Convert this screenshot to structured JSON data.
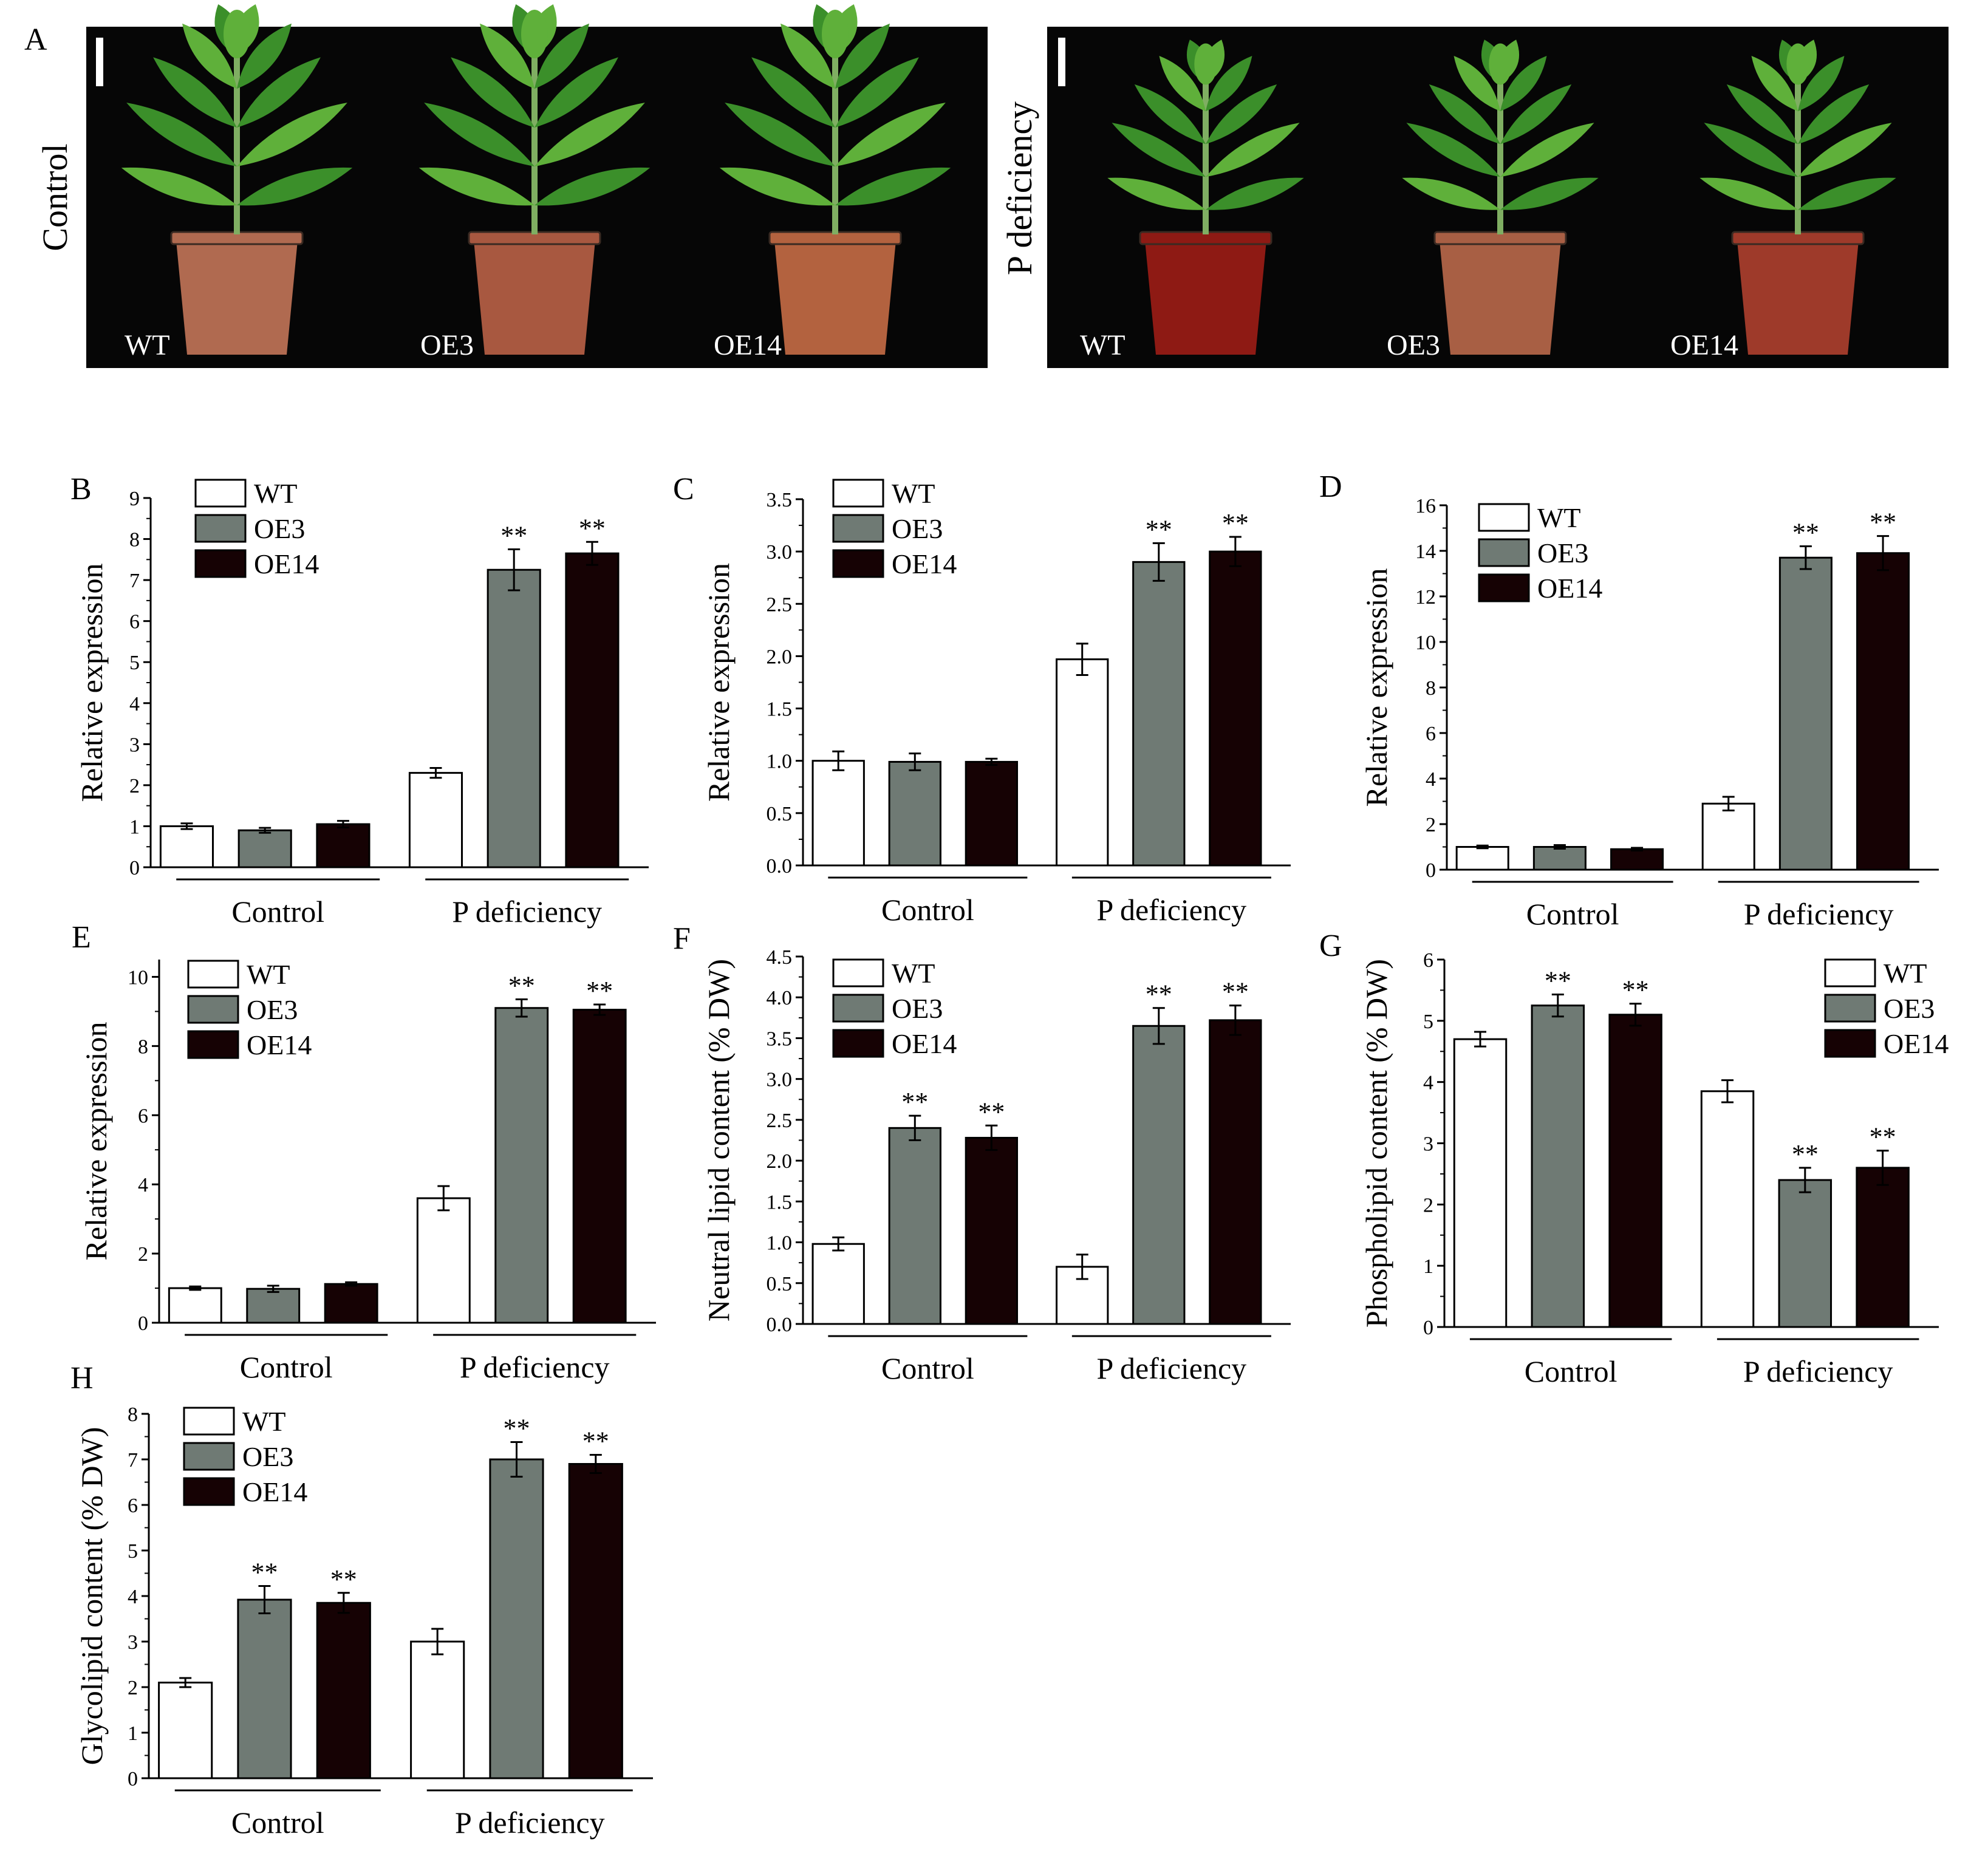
{
  "photos": {
    "panel_letter": "A",
    "panels": [
      {
        "side_label": "Control",
        "plants": [
          "WT",
          "OE3",
          "OE14"
        ],
        "pot_colors": [
          "#b06a50",
          "#a85840",
          "#b3623f"
        ]
      },
      {
        "side_label": "P deficiency",
        "plants": [
          "WT",
          "OE3",
          "OE14"
        ],
        "pot_colors": [
          "#8e1a14",
          "#a85f44",
          "#9e3a2a"
        ]
      }
    ]
  },
  "legend_labels": [
    "WT",
    "OE3",
    "OE14"
  ],
  "colors": {
    "WT": "#ffffff",
    "OE3": "#6f7a74",
    "OE14": "#160204",
    "plant": "#3b8f2a",
    "plant_light": "#5fb03a",
    "photo_bg": "#060606"
  },
  "significance_mark": "**",
  "chart_data": [
    {
      "panel": "B",
      "type": "bar",
      "ylabel": "Relative expression",
      "categories": [
        "Control",
        "P deficiency"
      ],
      "ylim": [
        0,
        9
      ],
      "yticks": [
        "0",
        "1",
        "2",
        "3",
        "4",
        "5",
        "6",
        "7",
        "8",
        "9"
      ],
      "series": [
        {
          "name": "WT",
          "values": [
            1.0,
            2.3
          ],
          "errors": [
            0.07,
            0.12
          ],
          "sig": [
            false,
            false
          ]
        },
        {
          "name": "OE3",
          "values": [
            0.9,
            7.25
          ],
          "errors": [
            0.06,
            0.5
          ],
          "sig": [
            false,
            true
          ]
        },
        {
          "name": "OE14",
          "values": [
            1.05,
            7.65
          ],
          "errors": [
            0.08,
            0.28
          ],
          "sig": [
            false,
            true
          ]
        }
      ]
    },
    {
      "panel": "C",
      "type": "bar",
      "ylabel": "Relative expression",
      "categories": [
        "Control",
        "P deficiency"
      ],
      "ylim": [
        0,
        3.5
      ],
      "yticks": [
        "0.0",
        "0.5",
        "1.0",
        "1.5",
        "2.0",
        "2.5",
        "3.0",
        "3.5"
      ],
      "series": [
        {
          "name": "WT",
          "values": [
            1.0,
            1.97
          ],
          "errors": [
            0.09,
            0.15
          ],
          "sig": [
            false,
            false
          ]
        },
        {
          "name": "OE3",
          "values": [
            0.99,
            2.9
          ],
          "errors": [
            0.08,
            0.18
          ],
          "sig": [
            false,
            true
          ]
        },
        {
          "name": "OE14",
          "values": [
            0.99,
            3.0
          ],
          "errors": [
            0.03,
            0.14
          ],
          "sig": [
            false,
            true
          ]
        }
      ]
    },
    {
      "panel": "D",
      "type": "bar",
      "ylabel": "Relative expression",
      "categories": [
        "Control",
        "P deficiency"
      ],
      "ylim": [
        0,
        16
      ],
      "yticks": [
        "0",
        "2",
        "4",
        "6",
        "8",
        "10",
        "12",
        "14",
        "16"
      ],
      "series": [
        {
          "name": "WT",
          "values": [
            1.0,
            2.9
          ],
          "errors": [
            0.06,
            0.3
          ],
          "sig": [
            false,
            false
          ]
        },
        {
          "name": "OE3",
          "values": [
            1.0,
            13.7
          ],
          "errors": [
            0.08,
            0.5
          ],
          "sig": [
            false,
            true
          ]
        },
        {
          "name": "OE14",
          "values": [
            0.9,
            13.9
          ],
          "errors": [
            0.06,
            0.75
          ],
          "sig": [
            false,
            true
          ]
        }
      ]
    },
    {
      "panel": "E",
      "type": "bar",
      "ylabel": "Relative expression",
      "categories": [
        "Control",
        "P deficiency"
      ],
      "ylim": [
        0,
        10.5
      ],
      "yticks": [
        "0",
        "2",
        "4",
        "6",
        "8",
        "10"
      ],
      "series": [
        {
          "name": "WT",
          "values": [
            1.0,
            3.6
          ],
          "errors": [
            0.05,
            0.35
          ],
          "sig": [
            false,
            false
          ]
        },
        {
          "name": "OE3",
          "values": [
            0.98,
            9.1
          ],
          "errors": [
            0.09,
            0.25
          ],
          "sig": [
            false,
            true
          ]
        },
        {
          "name": "OE14",
          "values": [
            1.12,
            9.05
          ],
          "errors": [
            0.05,
            0.15
          ],
          "sig": [
            false,
            true
          ]
        }
      ]
    },
    {
      "panel": "F",
      "type": "bar",
      "ylabel": "Neutral lipid content (% DW)",
      "categories": [
        "Control",
        "P deficiency"
      ],
      "ylim": [
        0,
        4.5
      ],
      "yticks": [
        "0.0",
        "0.5",
        "1.0",
        "1.5",
        "2.0",
        "2.5",
        "3.0",
        "3.5",
        "4.0",
        "4.5"
      ],
      "series": [
        {
          "name": "WT",
          "values": [
            0.98,
            0.7
          ],
          "errors": [
            0.08,
            0.15
          ],
          "sig": [
            false,
            false
          ]
        },
        {
          "name": "OE3",
          "values": [
            2.4,
            3.65
          ],
          "errors": [
            0.15,
            0.22
          ],
          "sig": [
            true,
            true
          ]
        },
        {
          "name": "OE14",
          "values": [
            2.28,
            3.72
          ],
          "errors": [
            0.15,
            0.18
          ],
          "sig": [
            true,
            true
          ]
        }
      ]
    },
    {
      "panel": "G",
      "type": "bar",
      "ylabel": "Phospholipid content (% DW)",
      "categories": [
        "Control",
        "P deficiency"
      ],
      "ylim": [
        0,
        6
      ],
      "yticks": [
        "0",
        "1",
        "2",
        "3",
        "4",
        "5",
        "6"
      ],
      "series": [
        {
          "name": "WT",
          "values": [
            4.7,
            3.85
          ],
          "errors": [
            0.12,
            0.18
          ],
          "sig": [
            false,
            false
          ]
        },
        {
          "name": "OE3",
          "values": [
            5.25,
            2.4
          ],
          "errors": [
            0.18,
            0.2
          ],
          "sig": [
            true,
            true
          ]
        },
        {
          "name": "OE14",
          "values": [
            5.1,
            2.6
          ],
          "errors": [
            0.18,
            0.28
          ],
          "sig": [
            true,
            true
          ]
        }
      ]
    },
    {
      "panel": "H",
      "type": "bar",
      "ylabel": "Glycolipid content (% DW)",
      "categories": [
        "Control",
        "P deficiency"
      ],
      "ylim": [
        0,
        8
      ],
      "yticks": [
        "0",
        "1",
        "2",
        "3",
        "4",
        "5",
        "6",
        "7",
        "8"
      ],
      "series": [
        {
          "name": "WT",
          "values": [
            2.1,
            3.0
          ],
          "errors": [
            0.1,
            0.28
          ],
          "sig": [
            false,
            false
          ]
        },
        {
          "name": "OE3",
          "values": [
            3.92,
            7.0
          ],
          "errors": [
            0.3,
            0.38
          ],
          "sig": [
            true,
            true
          ]
        },
        {
          "name": "OE14",
          "values": [
            3.85,
            6.9
          ],
          "errors": [
            0.22,
            0.2
          ],
          "sig": [
            true,
            true
          ]
        }
      ]
    }
  ]
}
